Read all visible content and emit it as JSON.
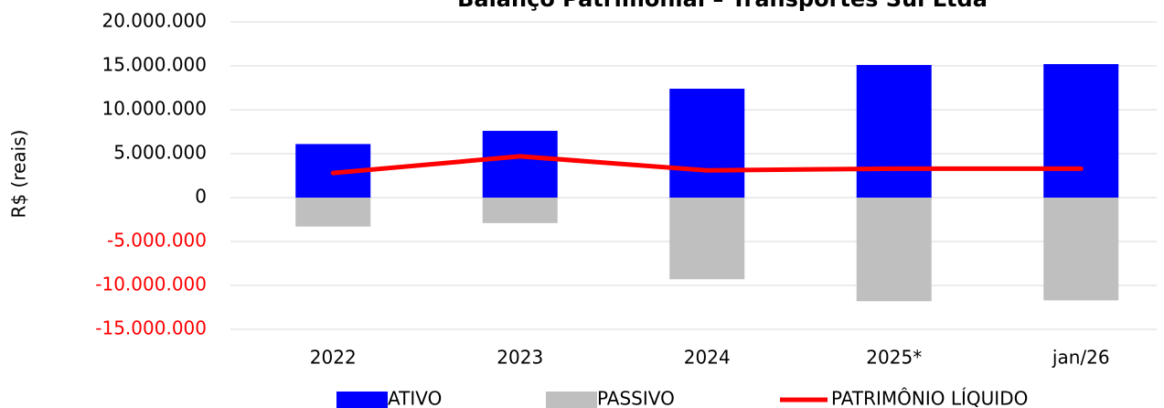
{
  "chart_data": {
    "type": "bar_line",
    "title": "Balanço Patrimonial – Transportes Sul Ltda",
    "y_label": "R$ (reais)",
    "categories": [
      "2022",
      "2023",
      "2024",
      "2025*",
      "jan/26"
    ],
    "series": [
      {
        "name": "ATIVO",
        "type": "bar",
        "color": "#0000ff",
        "values": [
          6100000,
          7600000,
          12400000,
          15100000,
          15200000
        ]
      },
      {
        "name": "PASSIVO",
        "type": "bar",
        "color": "#bfbfbf",
        "values": [
          -3300000,
          -2900000,
          -9300000,
          -11800000,
          -11700000
        ]
      },
      {
        "name": "PATRIMÔNIO LÍQUIDO",
        "type": "line",
        "color": "#ff0000",
        "values": [
          2800000,
          4700000,
          3100000,
          3300000,
          3300000
        ]
      }
    ],
    "ylim": [
      -15000000,
      20000000
    ],
    "yticks": [
      {
        "value": -15000000,
        "label": "-15.000.000"
      },
      {
        "value": -10000000,
        "label": "-10.000.000"
      },
      {
        "value": -5000000,
        "label": "-5.000.000"
      },
      0,
      {
        "value": 5000000,
        "label": "5.000.000"
      },
      {
        "value": 10000000,
        "label": "10.000.000"
      },
      {
        "value": 15000000,
        "label": "15.000.000"
      },
      {
        "value": 20000000,
        "label": "20.000.000"
      }
    ],
    "negative_tick_color": "#ff0000",
    "grid": true,
    "legend": "bottom"
  }
}
